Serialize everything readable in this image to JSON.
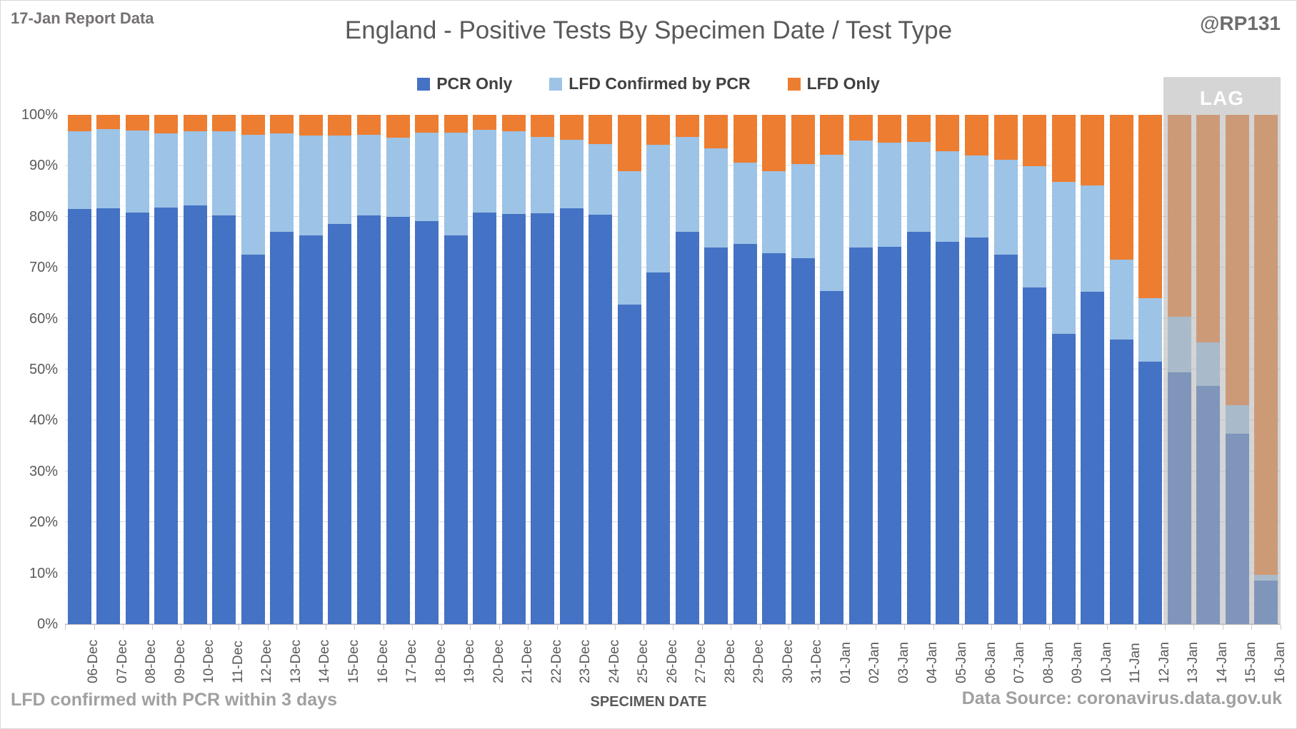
{
  "header": {
    "report_label": "17-Jan Report Data",
    "title": "England - Positive Tests By Specimen Date / Test Type",
    "handle": "@RP131"
  },
  "colors": {
    "pcr_only": "#4472C4",
    "lfd_confirmed": "#9DC3E6",
    "lfd_only": "#ED7D31",
    "lag_overlay": "rgba(178,178,178,0.55)",
    "gridline_major": "#d9d9d9",
    "gridline_minor": "#f2f2f2"
  },
  "legend": [
    {
      "label": "PCR Only",
      "color": "#4472C4"
    },
    {
      "label": "LFD Confirmed by PCR",
      "color": "#9DC3E6"
    },
    {
      "label": "LFD Only",
      "color": "#ED7D31"
    }
  ],
  "chart_data": {
    "type": "bar",
    "stacked": true,
    "title": "England - Positive Tests By Specimen Date / Test Type",
    "xlabel": "SPECIMEN DATE",
    "ylabel": "",
    "ylim": [
      0,
      100
    ],
    "y_tick_labels": [
      "0%",
      "10%",
      "20%",
      "30%",
      "40%",
      "50%",
      "60%",
      "70%",
      "80%",
      "90%",
      "100%"
    ],
    "grid": true,
    "legend_position": "top",
    "categories": [
      "06-Dec",
      "07-Dec",
      "08-Dec",
      "09-Dec",
      "10-Dec",
      "11-Dec",
      "12-Dec",
      "13-Dec",
      "14-Dec",
      "15-Dec",
      "16-Dec",
      "17-Dec",
      "18-Dec",
      "19-Dec",
      "20-Dec",
      "21-Dec",
      "22-Dec",
      "23-Dec",
      "24-Dec",
      "25-Dec",
      "26-Dec",
      "27-Dec",
      "28-Dec",
      "29-Dec",
      "30-Dec",
      "31-Dec",
      "01-Jan",
      "02-Jan",
      "03-Jan",
      "04-Jan",
      "05-Jan",
      "06-Jan",
      "07-Jan",
      "08-Jan",
      "09-Jan",
      "10-Jan",
      "11-Jan",
      "12-Jan",
      "13-Jan",
      "14-Jan",
      "15-Jan",
      "16-Jan"
    ],
    "series": [
      {
        "name": "PCR Only",
        "values": [
          81.5,
          81.6,
          80.8,
          81.8,
          82.2,
          80.2,
          72.6,
          77.0,
          76.3,
          78.6,
          80.2,
          80.0,
          79.1,
          76.4,
          80.8,
          80.5,
          80.7,
          81.6,
          80.4,
          62.8,
          69.0,
          77.1,
          74.0,
          74.7,
          72.9,
          71.9,
          65.4,
          73.9,
          74.1,
          77.0,
          75.1,
          75.9,
          72.6,
          66.1,
          57.0,
          65.3,
          55.9,
          51.6,
          49.5,
          46.8,
          37.4,
          8.5
        ]
      },
      {
        "name": "LFD Confirmed by PCR",
        "values": [
          15.3,
          15.6,
          16.1,
          14.6,
          14.6,
          16.6,
          23.5,
          19.4,
          19.6,
          17.3,
          15.9,
          15.5,
          17.4,
          20.1,
          16.2,
          16.3,
          15.0,
          13.5,
          13.8,
          26.2,
          25.1,
          18.6,
          19.4,
          15.9,
          16.0,
          18.5,
          26.8,
          21.0,
          20.5,
          17.7,
          17.7,
          16.1,
          18.6,
          23.8,
          29.8,
          20.9,
          15.7,
          12.4,
          10.9,
          8.5,
          5.6,
          1.1
        ]
      },
      {
        "name": "LFD Only",
        "values": [
          3.2,
          2.8,
          3.1,
          3.6,
          3.2,
          3.2,
          3.9,
          3.6,
          4.1,
          4.1,
          3.9,
          4.5,
          3.5,
          3.5,
          3.0,
          3.2,
          4.3,
          4.9,
          5.8,
          11.0,
          5.9,
          4.3,
          6.6,
          9.4,
          11.1,
          9.6,
          7.8,
          5.1,
          5.4,
          5.3,
          7.2,
          8.0,
          8.8,
          10.1,
          13.2,
          13.8,
          28.4,
          36.0,
          39.6,
          44.7,
          57.0,
          90.4
        ]
      }
    ],
    "annotations": [
      {
        "label": "LAG",
        "covers_categories": [
          "13-Jan",
          "14-Jan",
          "15-Jan",
          "16-Jan"
        ]
      }
    ]
  },
  "lag": {
    "label": "LAG",
    "start_index": 38
  },
  "footer": {
    "note": "LFD confirmed with PCR within 3 days",
    "xaxis_title": "SPECIMEN DATE",
    "source": "Data Source: coronavirus.data.gov.uk"
  }
}
